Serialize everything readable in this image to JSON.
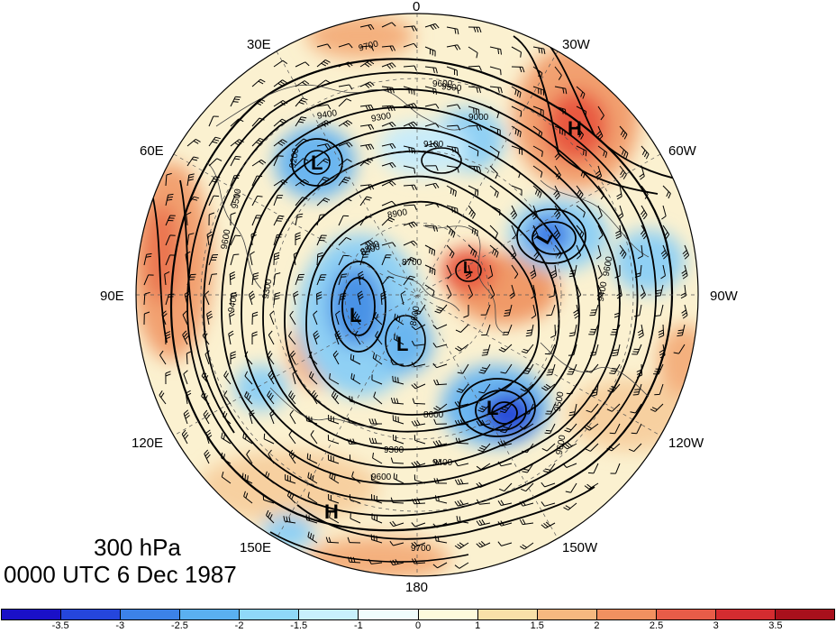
{
  "figure": {
    "level": "300 hPa",
    "datetime": "0000 UTC 6 Dec 1987"
  },
  "longitude_labels": [
    "0",
    "30W",
    "60W",
    "90W",
    "120W",
    "150W",
    "180",
    "150E",
    "120E",
    "90E",
    "60E",
    "30E"
  ],
  "pressure_centers": [
    {
      "type": "H",
      "label": "H"
    },
    {
      "type": "H",
      "label": "H"
    },
    {
      "type": "L",
      "label": "L"
    },
    {
      "type": "L",
      "label": "L"
    },
    {
      "type": "L",
      "label": "L"
    },
    {
      "type": "L",
      "label": "L"
    },
    {
      "type": "L",
      "label": "L"
    },
    {
      "type": "L",
      "label": "L"
    }
  ],
  "contour_labels": [
    "9700",
    "9600",
    "9500",
    "9400",
    "9300",
    "9200",
    "9100",
    "9000",
    "8900",
    "8800",
    "8700",
    "8600",
    "8400",
    "9500",
    "9600",
    "9400",
    "9300",
    "8600",
    "9400",
    "9600",
    "9700",
    "9600",
    "9300",
    "9600",
    "9500",
    "9400"
  ],
  "colorbar": {
    "colors": [
      "#1a10c8",
      "#2546dc",
      "#3c82e8",
      "#5ab0f0",
      "#8fd8f8",
      "#c8f0fc",
      "#f0fcfc",
      "#fefadc",
      "#f8e0a8",
      "#f6b880",
      "#f29060",
      "#e85c48",
      "#d42c30",
      "#a8101c"
    ],
    "tick_labels": [
      "-3.5",
      "-3",
      "-2.5",
      "-2",
      "-1.5",
      "-1",
      "0",
      "1",
      "1.5",
      "2",
      "2.5",
      "3",
      "3.5"
    ]
  }
}
